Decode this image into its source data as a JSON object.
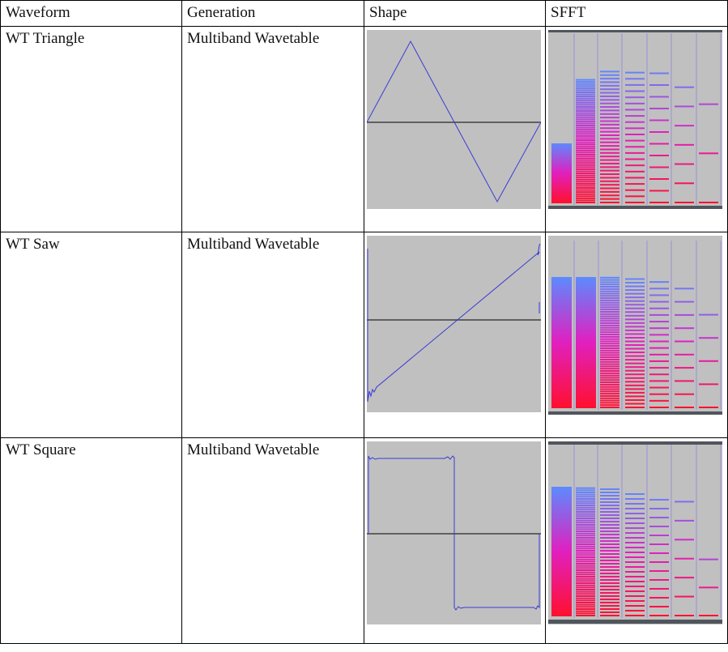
{
  "table": {
    "headers": [
      "Waveform",
      "Generation",
      "Shape",
      "SFFT"
    ],
    "rows": [
      {
        "waveform": "WT Triangle",
        "generation": "Multiband Wavetable",
        "shape": "triangle"
      },
      {
        "waveform": "WT Saw",
        "generation": "Multiband Wavetable",
        "shape": "saw"
      },
      {
        "waveform": "WT Square",
        "generation": "Multiband Wavetable",
        "shape": "square"
      }
    ]
  },
  "colors": {
    "plot_background": "#c0c0c0",
    "waveform_line": "#3a3ad6",
    "zero_line": "#404040",
    "spectrum_low": "#ff1030",
    "spectrum_mid": "#e020c0",
    "spectrum_high": "#5a8cff"
  }
}
